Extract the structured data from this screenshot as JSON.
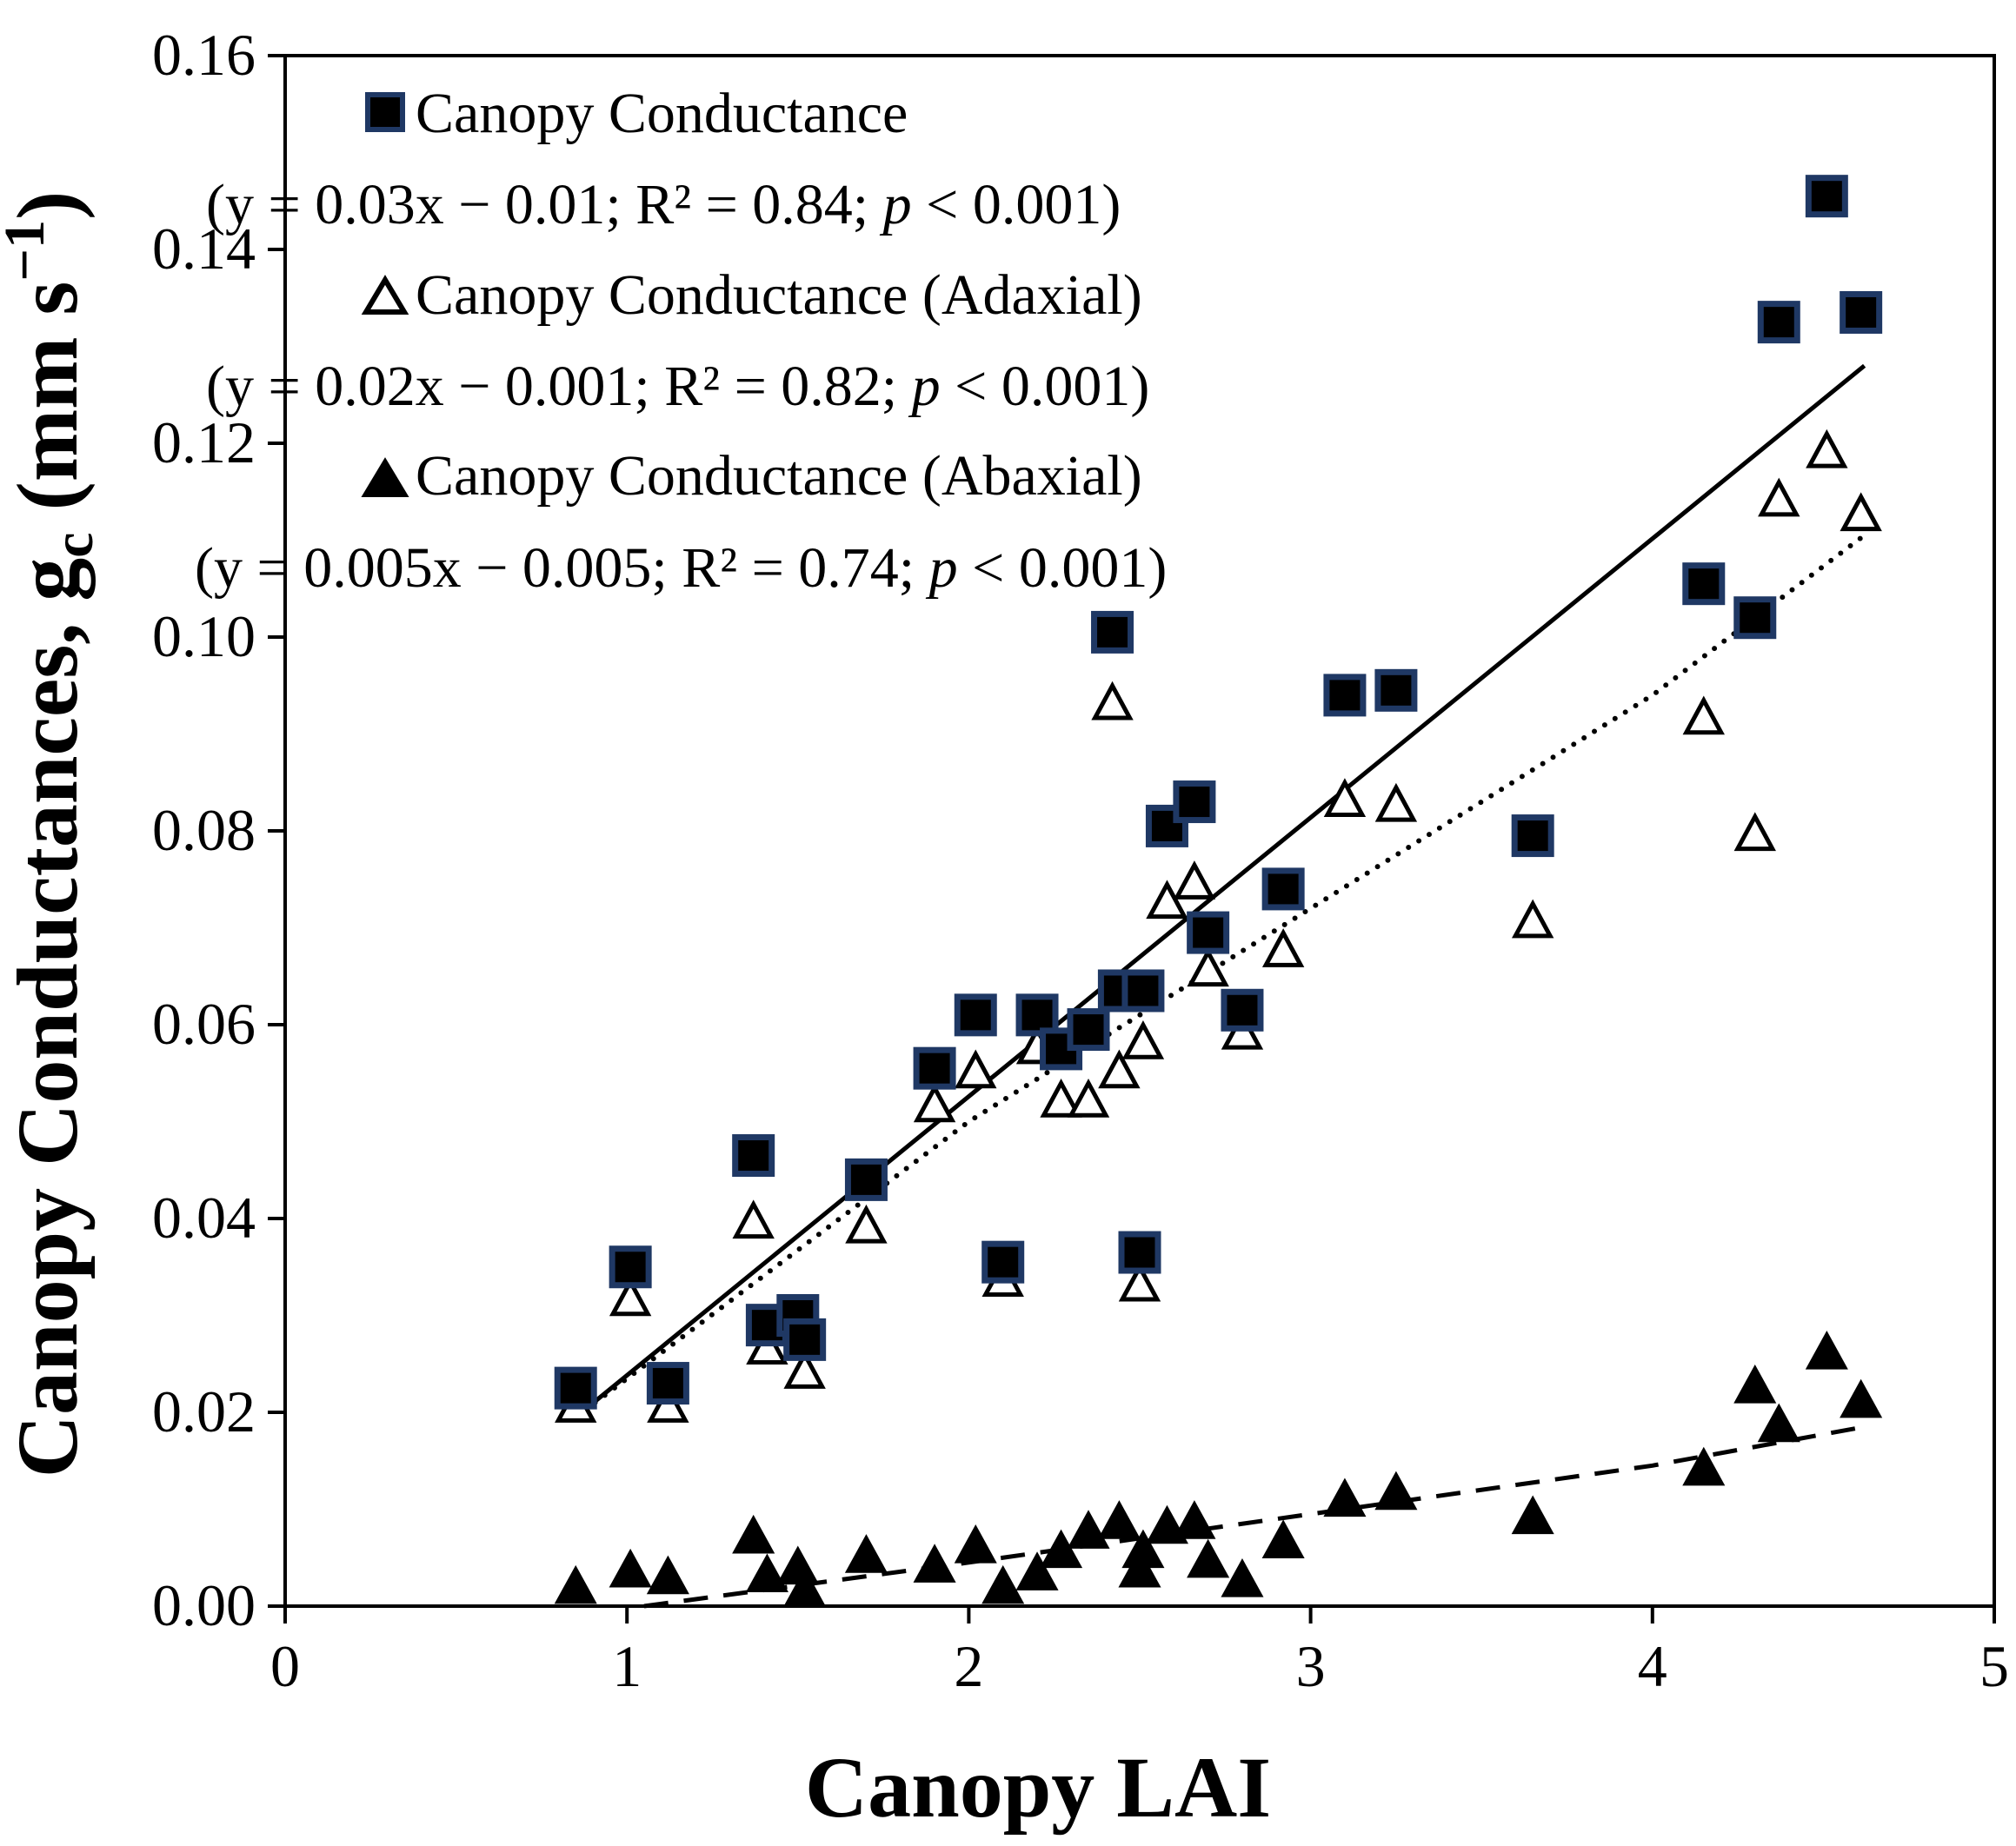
{
  "chart_data": {
    "type": "scatter",
    "xlabel": "Canopy LAI",
    "ylabel": {
      "main": "Canopy Conductances, g",
      "sub": "c",
      "unit_open": " (mm s",
      "unit_sup": "−1",
      "unit_close": ")"
    },
    "xlim": [
      0,
      5
    ],
    "ylim": [
      0,
      0.16
    ],
    "x_ticks": [
      "0",
      "1",
      "2",
      "3",
      "4",
      "5"
    ],
    "y_ticks": [
      "0.00",
      "0.02",
      "0.04",
      "0.06",
      "0.08",
      "0.10",
      "0.12",
      "0.14",
      "0.16"
    ],
    "grid": false,
    "legend": [
      {
        "marker": "filled-square",
        "label": "Canopy Conductance",
        "stats": {
          "pre": "(y = 0.03x − 0.01; R² = 0.84; ",
          "p": "p",
          "post": " < 0.001)"
        }
      },
      {
        "marker": "open-triangle",
        "label": "Canopy Conductance (Adaxial)",
        "stats": {
          "pre": "(y = 0.02x − 0.001; R² = 0.82; ",
          "p": "p",
          "post": " < 0.001)"
        }
      },
      {
        "marker": "filled-triangle",
        "label": "Canopy Conductance (Abaxial)",
        "stats": {
          "pre": "(y = 0.005x − 0.005; R² = 0.74; ",
          "p": "p",
          "post": " < 0.001)"
        }
      }
    ],
    "series": [
      {
        "name": "Canopy Conductance",
        "marker": "filled-square",
        "fit": {
          "type": "linear",
          "style": "solid",
          "x_range": [
            0.85,
            4.62
          ],
          "y_range": [
            0.0195,
            0.128
          ]
        },
        "points": [
          [
            0.85,
            0.0225
          ],
          [
            1.01,
            0.035
          ],
          [
            1.12,
            0.023
          ],
          [
            1.37,
            0.0465
          ],
          [
            1.41,
            0.029
          ],
          [
            1.5,
            0.03
          ],
          [
            1.52,
            0.0275
          ],
          [
            1.7,
            0.044
          ],
          [
            1.9,
            0.0555
          ],
          [
            2.02,
            0.061
          ],
          [
            2.1,
            0.0355
          ],
          [
            2.2,
            0.061
          ],
          [
            2.27,
            0.0575
          ],
          [
            2.35,
            0.0595
          ],
          [
            2.42,
            0.1005
          ],
          [
            2.44,
            0.0635
          ],
          [
            2.5,
            0.0365
          ],
          [
            2.51,
            0.0635
          ],
          [
            2.58,
            0.0805
          ],
          [
            2.66,
            0.083
          ],
          [
            2.7,
            0.0695
          ],
          [
            2.8,
            0.0615
          ],
          [
            2.92,
            0.074
          ],
          [
            3.1,
            0.094
          ],
          [
            3.25,
            0.0945
          ],
          [
            3.65,
            0.0795
          ],
          [
            4.15,
            0.1055
          ],
          [
            4.3,
            0.102
          ],
          [
            4.37,
            0.1325
          ],
          [
            4.51,
            0.1455
          ],
          [
            4.61,
            0.1335
          ]
        ]
      },
      {
        "name": "Canopy Conductance (Adaxial)",
        "marker": "open-triangle",
        "fit": {
          "type": "curve",
          "style": "dotted",
          "points": [
            [
              0.85,
              0.0195
            ],
            [
              2.0,
              0.05
            ],
            [
              3.0,
              0.072
            ],
            [
              4.0,
              0.094
            ],
            [
              4.62,
              0.1105
            ]
          ]
        },
        "points": [
          [
            0.85,
            0.0205
          ],
          [
            1.01,
            0.0315
          ],
          [
            1.12,
            0.0205
          ],
          [
            1.37,
            0.0395
          ],
          [
            1.41,
            0.0265
          ],
          [
            1.52,
            0.024
          ],
          [
            1.7,
            0.039
          ],
          [
            1.9,
            0.0515
          ],
          [
            2.02,
            0.055
          ],
          [
            2.1,
            0.0335
          ],
          [
            2.2,
            0.0575
          ],
          [
            2.27,
            0.052
          ],
          [
            2.35,
            0.052
          ],
          [
            2.42,
            0.093
          ],
          [
            2.44,
            0.055
          ],
          [
            2.5,
            0.033
          ],
          [
            2.51,
            0.058
          ],
          [
            2.58,
            0.0725
          ],
          [
            2.66,
            0.0745
          ],
          [
            2.7,
            0.0655
          ],
          [
            2.8,
            0.059
          ],
          [
            2.92,
            0.0675
          ],
          [
            3.1,
            0.083
          ],
          [
            3.25,
            0.0825
          ],
          [
            3.65,
            0.0705
          ],
          [
            4.15,
            0.0915
          ],
          [
            4.3,
            0.0795
          ],
          [
            4.37,
            0.114
          ],
          [
            4.51,
            0.119
          ],
          [
            4.61,
            0.1125
          ]
        ]
      },
      {
        "name": "Canopy Conductance (Abaxial)",
        "marker": "filled-triangle",
        "fit": {
          "type": "curve",
          "style": "dashed",
          "points": [
            [
              1.05,
              0.0
            ],
            [
              2.0,
              0.0045
            ],
            [
              3.0,
              0.0095
            ],
            [
              4.0,
              0.0145
            ],
            [
              4.62,
              0.0185
            ]
          ]
        },
        "points": [
          [
            0.85,
            0.0018
          ],
          [
            1.01,
            0.0035
          ],
          [
            1.12,
            0.0028
          ],
          [
            1.37,
            0.007
          ],
          [
            1.41,
            0.003
          ],
          [
            1.5,
            0.0038
          ],
          [
            1.52,
            0.0015
          ],
          [
            1.7,
            0.005
          ],
          [
            1.9,
            0.004
          ],
          [
            2.02,
            0.006
          ],
          [
            2.1,
            0.0018
          ],
          [
            2.2,
            0.0032
          ],
          [
            2.27,
            0.0055
          ],
          [
            2.35,
            0.0075
          ],
          [
            2.44,
            0.0085
          ],
          [
            2.5,
            0.0035
          ],
          [
            2.51,
            0.0055
          ],
          [
            2.58,
            0.008
          ],
          [
            2.66,
            0.0085
          ],
          [
            2.7,
            0.0045
          ],
          [
            2.8,
            0.0025
          ],
          [
            2.92,
            0.0065
          ],
          [
            3.1,
            0.0108
          ],
          [
            3.25,
            0.0115
          ],
          [
            3.65,
            0.009
          ],
          [
            4.15,
            0.014
          ],
          [
            4.3,
            0.0225
          ],
          [
            4.37,
            0.0185
          ],
          [
            4.51,
            0.026
          ],
          [
            4.61,
            0.021
          ]
        ]
      }
    ]
  },
  "colors": {
    "square_fill": "#000000",
    "square_edge": "#1f3864",
    "axis": "#000000"
  }
}
